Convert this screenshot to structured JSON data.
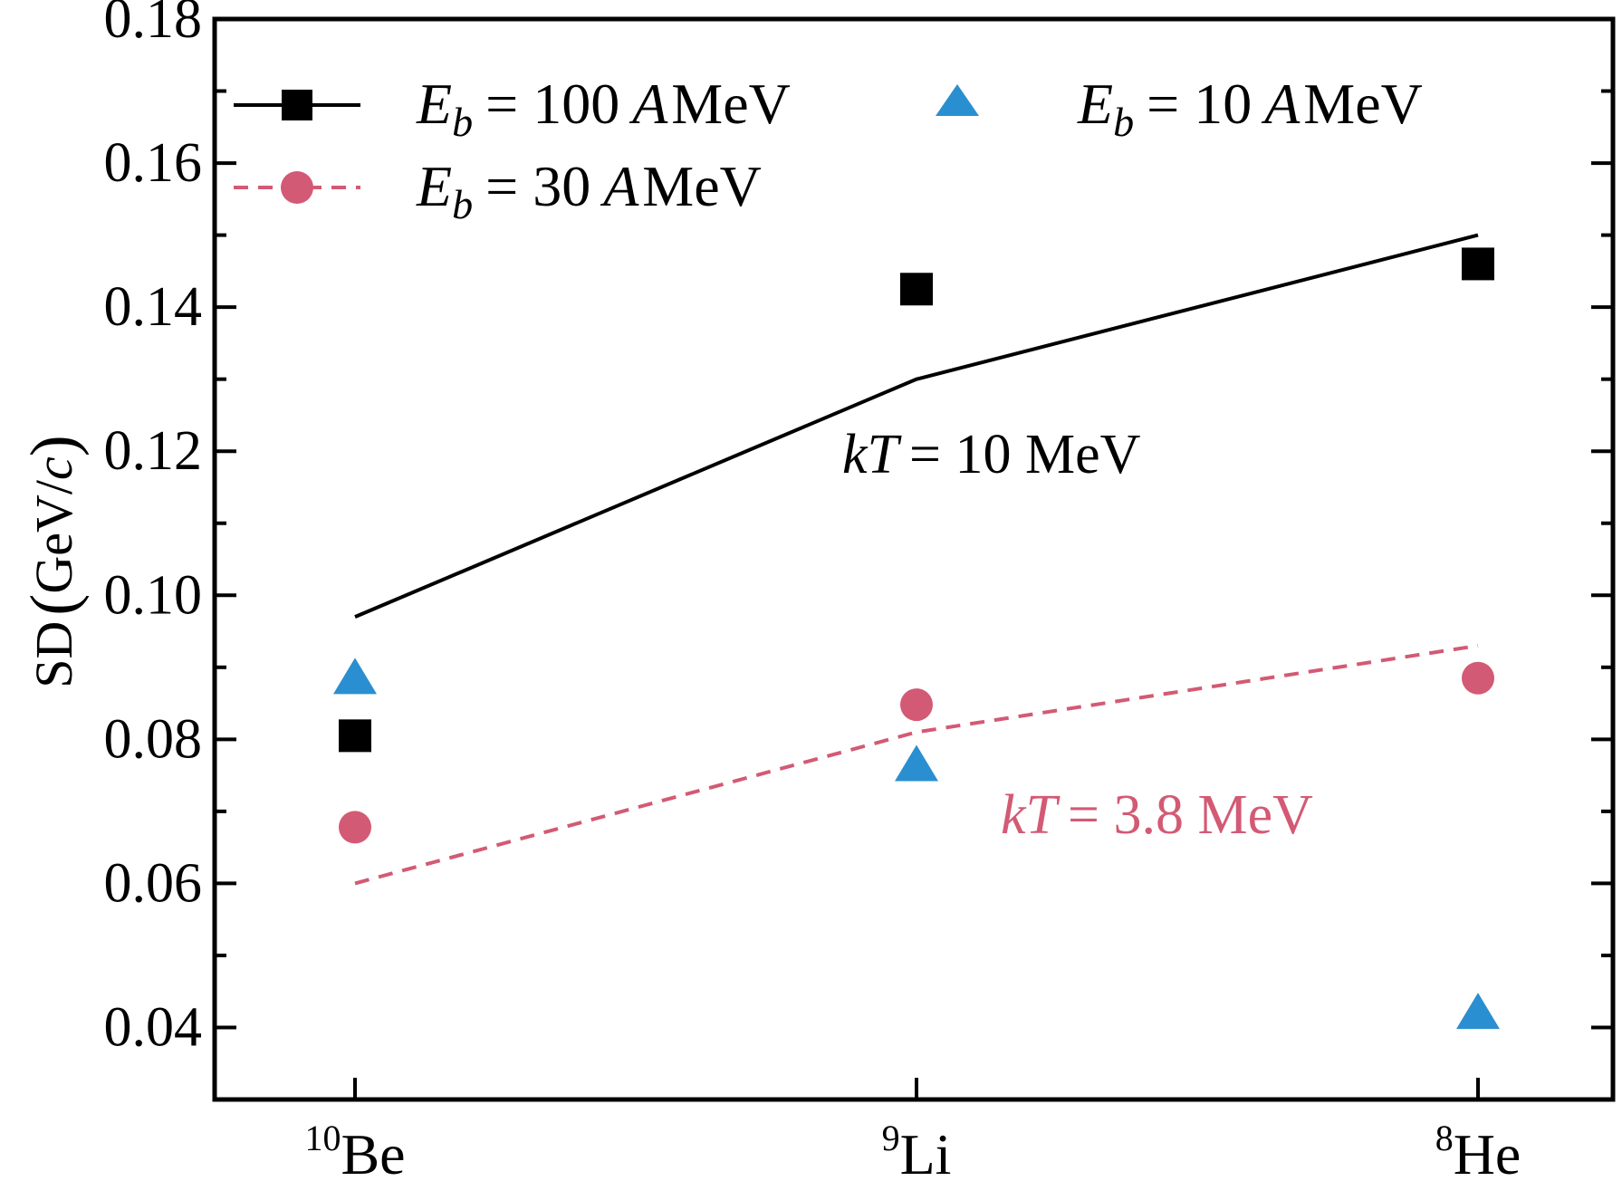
{
  "colors": {
    "series_100": "#000000",
    "series_30": "#d35a74",
    "series_10": "#2a8fd0"
  },
  "chart_data": {
    "type": "scatter",
    "categories": [
      "10Be",
      "9Li",
      "8He"
    ],
    "category_labels": [
      {
        "sup": "10",
        "base": "Be"
      },
      {
        "sup": "9",
        "base": "Li"
      },
      {
        "sup": "8",
        "base": "He"
      }
    ],
    "ylim": [
      0.03,
      0.18
    ],
    "yticks": [
      "0.04",
      "0.06",
      "0.08",
      "0.10",
      "0.12",
      "0.14",
      "0.16",
      "0.18"
    ],
    "ylabel": {
      "prefix": "SD",
      "open": "(",
      "unit": "GeV/",
      "unit_italic": "c",
      "close": ")"
    },
    "series": [
      {
        "name": "E_b = 100 A MeV",
        "legend": {
          "E": "E",
          "sub": "b",
          "value": "= 100",
          "A": "A",
          "unit": "MeV"
        },
        "marker": "square",
        "values": [
          0.0805,
          0.1425,
          0.146
        ],
        "line": {
          "values": [
            0.097,
            0.13,
            0.15
          ],
          "style": "solid"
        }
      },
      {
        "name": "E_b = 30 A MeV",
        "legend": {
          "E": "E",
          "sub": "b",
          "value": "= 30",
          "A": "A",
          "unit": "MeV"
        },
        "marker": "circle",
        "values": [
          0.0678,
          0.0848,
          0.0885
        ],
        "line": {
          "values": [
            0.06,
            0.081,
            0.093
          ],
          "style": "dashed"
        }
      },
      {
        "name": "E_b = 10 A MeV",
        "legend": {
          "E": "E",
          "sub": "b",
          "value": "= 10",
          "A": "A",
          "unit": "MeV"
        },
        "marker": "triangle",
        "values": [
          0.0883,
          0.0762,
          0.0418
        ]
      }
    ],
    "annotations": [
      {
        "kT": "kT",
        "text": "= 10 MeV",
        "color": "#000000"
      },
      {
        "kT": "kT",
        "text": "= 3.8 MeV",
        "color": "#d35a74"
      }
    ],
    "legend_position": "top",
    "grid": false
  }
}
